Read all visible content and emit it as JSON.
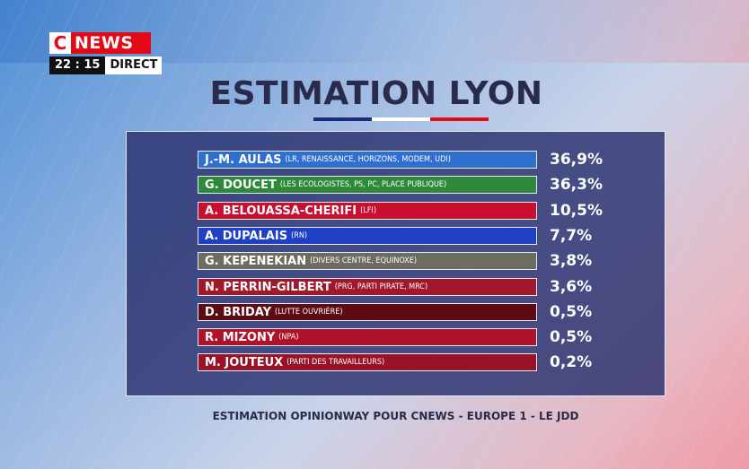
{
  "logo": {
    "letter": "C",
    "word": "NEWS",
    "brand_color": "#e30a17"
  },
  "clock": {
    "time": "22 : 15",
    "label": "DIRECT"
  },
  "title": "ESTIMATION LYON",
  "flag_colors": [
    "#1f2a7a",
    "#ffffff",
    "#e30a17"
  ],
  "source": "ESTIMATION OPINIONWAY POUR CNEWS - EUROPE 1 - LE JDD",
  "chart_data": {
    "type": "table",
    "rows": [
      {
        "candidate": "J.-M. AULAS",
        "party": "(LR, RENAISSANCE, HORIZONS, MODEM, UDI)",
        "value": "36,9%",
        "color": "#2f6fd0"
      },
      {
        "candidate": "G. DOUCET",
        "party": "(LES ECOLOGISTES, PS, PC, PLACE PUBLIQUE)",
        "value": "36,3%",
        "color": "#2e8a3a"
      },
      {
        "candidate": "A. BELOUASSA-CHERIFI",
        "party": "(LFI)",
        "value": "10,5%",
        "color": "#c8102e"
      },
      {
        "candidate": "A. DUPALAIS",
        "party": "(RN)",
        "value": "7,7%",
        "color": "#1f3fc4"
      },
      {
        "candidate": "G. KEPENEKIAN",
        "party": "(DIVERS CENTRE, EQUINOXE)",
        "value": "3,8%",
        "color": "#6d6d5f"
      },
      {
        "candidate": "N. PERRIN-GILBERT",
        "party": "(PRG, PARTI PIRATE, MRC)",
        "value": "3,6%",
        "color": "#a0182a"
      },
      {
        "candidate": "D. BRIDAY",
        "party": "(LUTTE OUVRIÈRE)",
        "value": "0,5%",
        "color": "#5e0b14"
      },
      {
        "candidate": "R. MIZONY",
        "party": "(NPA)",
        "value": "0,5%",
        "color": "#b0122a"
      },
      {
        "candidate": "M. JOUTEUX",
        "party": "(PARTI DES TRAVAILLEURS)",
        "value": "0,2%",
        "color": "#9a1226"
      }
    ]
  }
}
